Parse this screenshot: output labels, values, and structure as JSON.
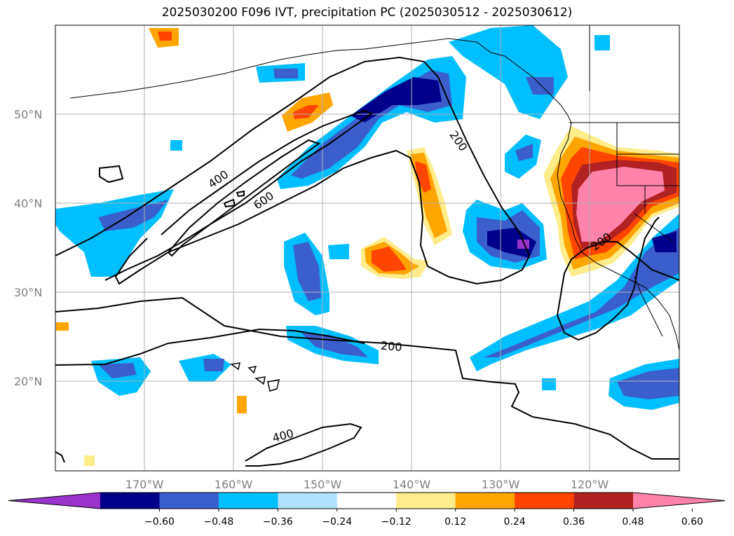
{
  "title": "2025030200 F096 IVT, precipitation PC (2025030512 - 2025030612)",
  "map": {
    "lat_labels": [
      "50°N",
      "40°N",
      "30°N",
      "20°N"
    ],
    "lon_labels": [
      "170°W",
      "160°W",
      "150°W",
      "140°W",
      "130°W",
      "120°W"
    ],
    "ivt_contour_labels": [
      "400",
      "600",
      "200",
      "200",
      "200",
      "400"
    ],
    "gridlines": true
  },
  "colorbar": {
    "ticks": [
      "−0.60",
      "−0.48",
      "−0.36",
      "−0.24",
      "−0.12",
      "0.12",
      "0.24",
      "0.36",
      "0.48",
      "0.60"
    ],
    "colors": [
      "#9933cc",
      "#00008b",
      "#3a5fcd",
      "#00bfff",
      "#b0e2ff",
      "#ffffff",
      "#ffec8b",
      "#ffa500",
      "#ff4500",
      "#b22222",
      "#ff82ab"
    ]
  }
}
